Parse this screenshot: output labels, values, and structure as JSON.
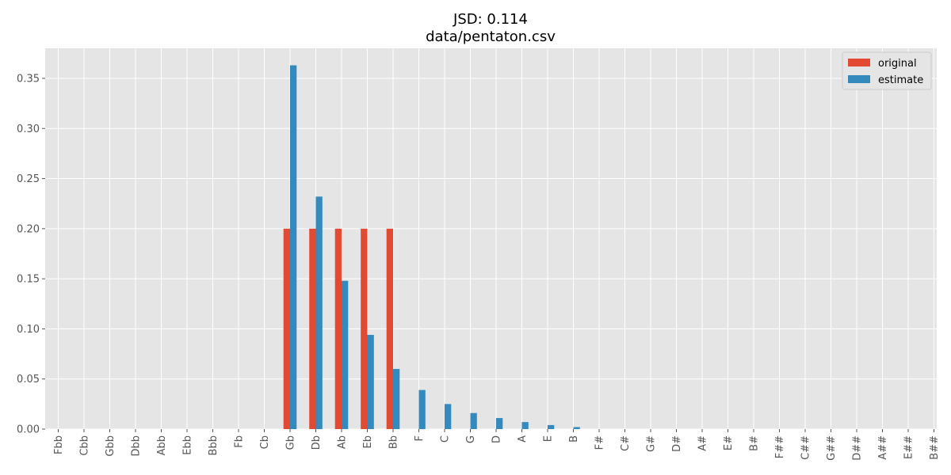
{
  "chart_data": {
    "type": "bar",
    "title": "JSD: 0.114",
    "subtitle": "data/pentaton.csv",
    "xlabel": "",
    "ylabel": "",
    "ylim": [
      0,
      0.38
    ],
    "yticks": [
      "0.00",
      "0.05",
      "0.10",
      "0.15",
      "0.20",
      "0.25",
      "0.30",
      "0.35"
    ],
    "grid": true,
    "legend_position": "top-right",
    "categories": [
      "Fbb",
      "Cbb",
      "Gbb",
      "Dbb",
      "Abb",
      "Ebb",
      "Bbb",
      "Fb",
      "Cb",
      "Gb",
      "Db",
      "Ab",
      "Eb",
      "Bb",
      "F",
      "C",
      "G",
      "D",
      "A",
      "E",
      "B",
      "F#",
      "C#",
      "G#",
      "D#",
      "A#",
      "E#",
      "B#",
      "F##",
      "C##",
      "G##",
      "D##",
      "A##",
      "E##",
      "B##"
    ],
    "series": [
      {
        "name": "original",
        "color": "#E24A33",
        "values": [
          0,
          0,
          0,
          0,
          0,
          0,
          0,
          0,
          0,
          0.2,
          0.2,
          0.2,
          0.2,
          0.2,
          0,
          0,
          0,
          0,
          0,
          0,
          0,
          0,
          0,
          0,
          0,
          0,
          0,
          0,
          0,
          0,
          0,
          0,
          0,
          0,
          0
        ]
      },
      {
        "name": "estimate",
        "color": "#348ABD",
        "values": [
          0,
          0,
          0,
          0,
          0,
          0,
          0,
          0,
          0,
          0.363,
          0.232,
          0.148,
          0.094,
          0.06,
          0.039,
          0.025,
          0.016,
          0.011,
          0.007,
          0.004,
          0.002,
          0,
          0,
          0,
          0,
          0,
          0,
          0,
          0,
          0,
          0,
          0,
          0,
          0,
          0
        ]
      }
    ]
  }
}
